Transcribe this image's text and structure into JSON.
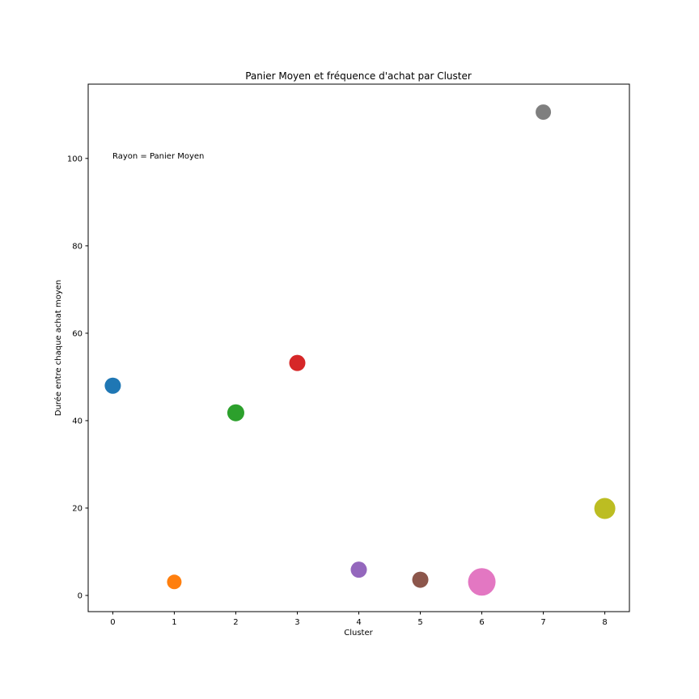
{
  "chart_data": {
    "type": "scatter",
    "title": "Panier Moyen et fréquence d'achat par Cluster",
    "xlabel": "Cluster",
    "ylabel": "Durée entre chaque achat moyen",
    "xlim": [
      -0.4,
      8.4
    ],
    "ylim": [
      -3.7,
      117
    ],
    "x_ticks": [
      0,
      1,
      2,
      3,
      4,
      5,
      6,
      7,
      8
    ],
    "y_ticks": [
      0,
      20,
      40,
      60,
      80,
      100
    ],
    "grid": false,
    "annotation": "Rayon = Panier Moyen",
    "points": [
      {
        "x": 0,
        "y": 48.0,
        "size": 1.0,
        "color": "#1f77b4"
      },
      {
        "x": 1,
        "y": 3.1,
        "size": 0.9,
        "color": "#ff7f0e"
      },
      {
        "x": 2,
        "y": 41.8,
        "size": 1.05,
        "color": "#2ca02c"
      },
      {
        "x": 3,
        "y": 53.2,
        "size": 1.0,
        "color": "#d62728"
      },
      {
        "x": 4,
        "y": 5.9,
        "size": 1.0,
        "color": "#9467bd"
      },
      {
        "x": 5,
        "y": 3.6,
        "size": 1.0,
        "color": "#8c564b"
      },
      {
        "x": 6,
        "y": 3.1,
        "size": 1.7,
        "color": "#e377c2"
      },
      {
        "x": 7,
        "y": 110.6,
        "size": 0.95,
        "color": "#7f7f7f"
      },
      {
        "x": 8,
        "y": 19.9,
        "size": 1.3,
        "color": "#bcbd22"
      }
    ]
  }
}
